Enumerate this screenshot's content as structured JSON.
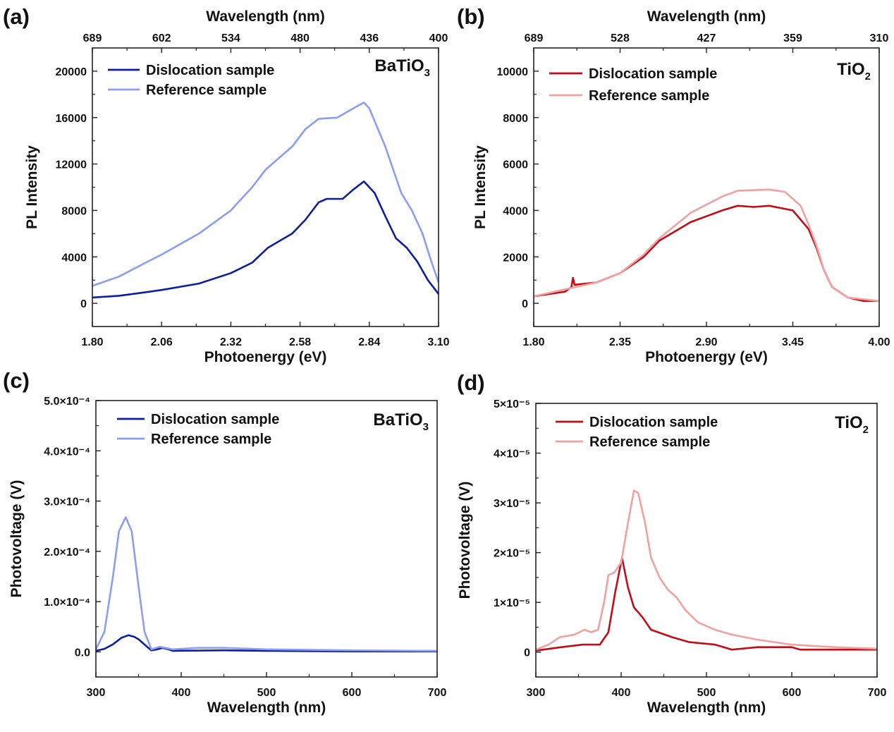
{
  "colors": {
    "batio3_dislocation": "#0d1f9c",
    "batio3_reference": "#8c9df2",
    "tio2_dislocation": "#c00d18",
    "tio2_reference": "#f2a0a0",
    "axis": "#222222"
  },
  "chart_data": [
    {
      "panel": "(a)",
      "type": "line",
      "formula": {
        "base": "BaTiO",
        "sub": "3"
      },
      "xlabel": "Photoenergy (eV)",
      "ylabel": "PL Intensity",
      "top_xlabel": "Wavelength (nm)",
      "xlim": [
        1.8,
        3.1
      ],
      "ylim": [
        -2000,
        22000
      ],
      "xticks": [
        "1.80",
        "2.06",
        "2.32",
        "2.58",
        "2.84",
        "3.10"
      ],
      "xtick_values": [
        1.8,
        2.06,
        2.32,
        2.58,
        2.84,
        3.1
      ],
      "top_xticks": [
        "689",
        "602",
        "534",
        "480",
        "436",
        "400"
      ],
      "yticks": [
        "0",
        "4000",
        "8000",
        "12000",
        "16000",
        "20000"
      ],
      "ytick_values": [
        0,
        4000,
        8000,
        12000,
        16000,
        20000
      ],
      "grid": false,
      "legend": "top-left",
      "series": [
        {
          "name": "Dislocation sample",
          "color_key": "batio3_dislocation",
          "x": [
            1.8,
            1.9,
            2.0,
            2.06,
            2.2,
            2.32,
            2.4,
            2.46,
            2.55,
            2.6,
            2.65,
            2.68,
            2.74,
            2.78,
            2.82,
            2.86,
            2.9,
            2.94,
            2.98,
            3.02,
            3.06,
            3.1
          ],
          "y": [
            500,
            650,
            950,
            1150,
            1700,
            2600,
            3500,
            4800,
            6000,
            7200,
            8700,
            9000,
            9000,
            9800,
            10500,
            9500,
            7500,
            5600,
            4800,
            3600,
            2000,
            800
          ]
        },
        {
          "name": "Reference sample",
          "color_key": "batio3_reference",
          "x": [
            1.8,
            1.9,
            2.0,
            2.06,
            2.2,
            2.32,
            2.4,
            2.45,
            2.55,
            2.6,
            2.65,
            2.72,
            2.78,
            2.82,
            2.84,
            2.9,
            2.96,
            3.0,
            3.04,
            3.07,
            3.1
          ],
          "y": [
            1500,
            2300,
            3500,
            4200,
            6000,
            8000,
            10000,
            11500,
            13500,
            15000,
            15900,
            16000,
            16800,
            17300,
            16800,
            13500,
            9500,
            8000,
            6000,
            3800,
            1800
          ]
        }
      ]
    },
    {
      "panel": "(b)",
      "type": "line",
      "formula": {
        "base": "TiO",
        "sub": "2"
      },
      "xlabel": "Photoenergy (eV)",
      "ylabel": "PL Intensity",
      "top_xlabel": "Wavelength (nm)",
      "xlim": [
        1.8,
        4.0
      ],
      "ylim": [
        -1000,
        11000
      ],
      "xticks": [
        "1.80",
        "2.35",
        "2.90",
        "3.45",
        "4.00"
      ],
      "xtick_values": [
        1.8,
        2.35,
        2.9,
        3.45,
        4.0
      ],
      "top_xticks": [
        "689",
        "528",
        "427",
        "359",
        "310"
      ],
      "yticks": [
        "0",
        "2000",
        "4000",
        "6000",
        "8000",
        "10000"
      ],
      "ytick_values": [
        0,
        2000,
        4000,
        6000,
        8000,
        10000
      ],
      "grid": false,
      "legend": "top-left",
      "series": [
        {
          "name": "Dislocation sample",
          "color_key": "tio2_dislocation",
          "x": [
            1.8,
            1.9,
            2.0,
            2.04,
            2.05,
            2.06,
            2.2,
            2.35,
            2.5,
            2.6,
            2.8,
            3.0,
            3.1,
            3.2,
            3.3,
            3.45,
            3.55,
            3.6,
            3.65,
            3.7,
            3.8,
            3.9,
            4.0
          ],
          "y": [
            300,
            400,
            500,
            700,
            1100,
            800,
            900,
            1300,
            2000,
            2700,
            3500,
            4000,
            4200,
            4150,
            4200,
            4000,
            3200,
            2400,
            1400,
            700,
            250,
            100,
            100
          ]
        },
        {
          "name": "Reference sample",
          "color_key": "tio2_reference",
          "x": [
            1.8,
            2.0,
            2.2,
            2.35,
            2.5,
            2.6,
            2.8,
            3.0,
            3.1,
            3.3,
            3.4,
            3.5,
            3.55,
            3.6,
            3.65,
            3.7,
            3.8,
            4.0
          ],
          "y": [
            300,
            600,
            900,
            1300,
            2100,
            2800,
            3900,
            4600,
            4850,
            4900,
            4800,
            4200,
            3400,
            2500,
            1400,
            700,
            250,
            100
          ]
        }
      ]
    },
    {
      "panel": "(c)",
      "type": "line",
      "formula": {
        "base": "BaTiO",
        "sub": "3"
      },
      "xlabel": "Wavelength (nm)",
      "ylabel": "Photovoltage (V)",
      "xlim": [
        300,
        700
      ],
      "ylim": [
        -5e-05,
        0.0005
      ],
      "xticks": [
        "300",
        "400",
        "500",
        "600",
        "700"
      ],
      "xtick_values": [
        300,
        400,
        500,
        600,
        700
      ],
      "yticks": [
        "0.0",
        "1.0×10⁻⁴",
        "2.0×10⁻⁴",
        "3.0×10⁻⁴",
        "4.0×10⁻⁴",
        "5.0×10⁻⁴"
      ],
      "ytick_values": [
        0,
        0.0001,
        0.0002,
        0.0003,
        0.0004,
        0.0005
      ],
      "grid": false,
      "legend": "top-left",
      "series": [
        {
          "name": "Dislocation sample",
          "color_key": "batio3_dislocation",
          "x": [
            300,
            310,
            320,
            330,
            338,
            345,
            350,
            360,
            365,
            372,
            378,
            385,
            390,
            450,
            500,
            600,
            700
          ],
          "y": [
            2e-06,
            6e-06,
            1.5e-05,
            2.8e-05,
            3.3e-05,
            3e-05,
            2.5e-05,
            1e-05,
            3e-06,
            5e-06,
            8e-06,
            5e-06,
            2e-06,
            3e-06,
            2e-06,
            1e-06,
            1e-06
          ]
        },
        {
          "name": "Reference sample",
          "color_key": "batio3_reference",
          "x": [
            300,
            310,
            320,
            327,
            335,
            342,
            350,
            357,
            365,
            375,
            390,
            420,
            450,
            500,
            600,
            700
          ],
          "y": [
            5e-06,
            4e-05,
            0.00015,
            0.00024,
            0.000268,
            0.00024,
            0.00013,
            4e-05,
            5e-06,
            1e-05,
            5e-06,
            8e-06,
            8e-06,
            5e-06,
            3e-06,
            2e-06
          ]
        }
      ]
    },
    {
      "panel": "(d)",
      "type": "line",
      "formula": {
        "base": "TiO",
        "sub": "2"
      },
      "xlabel": "Wavelength (nm)",
      "ylabel": "Photovoltage (V)",
      "xlim": [
        300,
        700
      ],
      "ylim": [
        -5e-06,
        5e-05
      ],
      "xticks": [
        "300",
        "400",
        "500",
        "600",
        "700"
      ],
      "xtick_values": [
        300,
        400,
        500,
        600,
        700
      ],
      "yticks": [
        "0",
        "1×10⁻⁵",
        "2×10⁻⁵",
        "3×10⁻⁵",
        "4×10⁻⁵",
        "5×10⁻⁵"
      ],
      "ytick_values": [
        0,
        1e-05,
        2e-05,
        3e-05,
        4e-05,
        5e-05
      ],
      "grid": false,
      "legend": "top-left",
      "series": [
        {
          "name": "Dislocation sample",
          "color_key": "tio2_dislocation",
          "x": [
            300,
            330,
            355,
            375,
            385,
            393,
            401,
            408,
            415,
            425,
            435,
            460,
            480,
            510,
            530,
            560,
            600,
            610,
            700
          ],
          "y": [
            3e-07,
            1e-06,
            1.5e-06,
            1.5e-06,
            4e-06,
            1.2e-05,
            1.9e-05,
            1.3e-05,
            9e-06,
            7e-06,
            4.5e-06,
            3e-06,
            2e-06,
            1.5e-06,
            5e-07,
            1e-06,
            1e-06,
            5e-07,
            5e-07
          ]
        },
        {
          "name": "Reference sample",
          "color_key": "tio2_reference",
          "x": [
            300,
            315,
            328,
            345,
            357,
            365,
            373,
            380,
            385,
            392,
            400,
            408,
            415,
            420,
            428,
            435,
            445,
            455,
            465,
            475,
            490,
            510,
            530,
            560,
            600,
            650,
            700
          ],
          "y": [
            5e-07,
            1.5e-06,
            3e-06,
            3.5e-06,
            4.5e-06,
            4e-06,
            4.5e-06,
            1e-05,
            1.55e-05,
            1.6e-05,
            1.8e-05,
            2.6e-05,
            3.25e-05,
            3.2e-05,
            2.6e-05,
            1.9e-05,
            1.5e-05,
            1.25e-05,
            1.1e-05,
            8.5e-06,
            6e-06,
            4.5e-06,
            3.5e-06,
            2.5e-06,
            1.5e-06,
            1e-06,
            7e-07
          ]
        }
      ]
    }
  ]
}
